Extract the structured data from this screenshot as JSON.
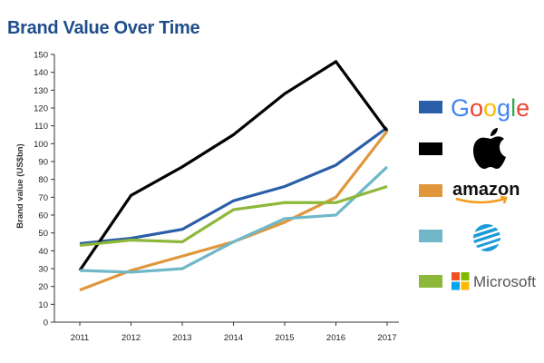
{
  "chart_data": {
    "type": "line",
    "title": "Brand Value Over Time",
    "xlabel": "",
    "ylabel": "Brand value (US$bn)",
    "ylim": [
      0,
      150
    ],
    "yticks": [
      0,
      10,
      20,
      30,
      40,
      50,
      60,
      70,
      80,
      90,
      100,
      110,
      120,
      130,
      140,
      150
    ],
    "x": [
      "2011",
      "2012",
      "2013",
      "2014",
      "2015",
      "2016",
      "2017"
    ],
    "grid": false,
    "legend_position": "right",
    "series": [
      {
        "name": "Google",
        "color": "#2a5ea8",
        "values": [
          44,
          47,
          52,
          68,
          76,
          88,
          109
        ]
      },
      {
        "name": "Apple",
        "color": "#000000",
        "values": [
          29,
          71,
          87,
          105,
          128,
          146,
          107
        ]
      },
      {
        "name": "amazon",
        "color": "#e0963a",
        "values": [
          18,
          29,
          37,
          45,
          56,
          70,
          107
        ]
      },
      {
        "name": "AT&T",
        "color": "#6fb7c9",
        "values": [
          29,
          28,
          30,
          45,
          58,
          60,
          87
        ]
      },
      {
        "name": "Microsoft",
        "color": "#8db83a",
        "values": [
          43,
          46,
          45,
          63,
          67,
          67,
          76
        ]
      }
    ]
  }
}
